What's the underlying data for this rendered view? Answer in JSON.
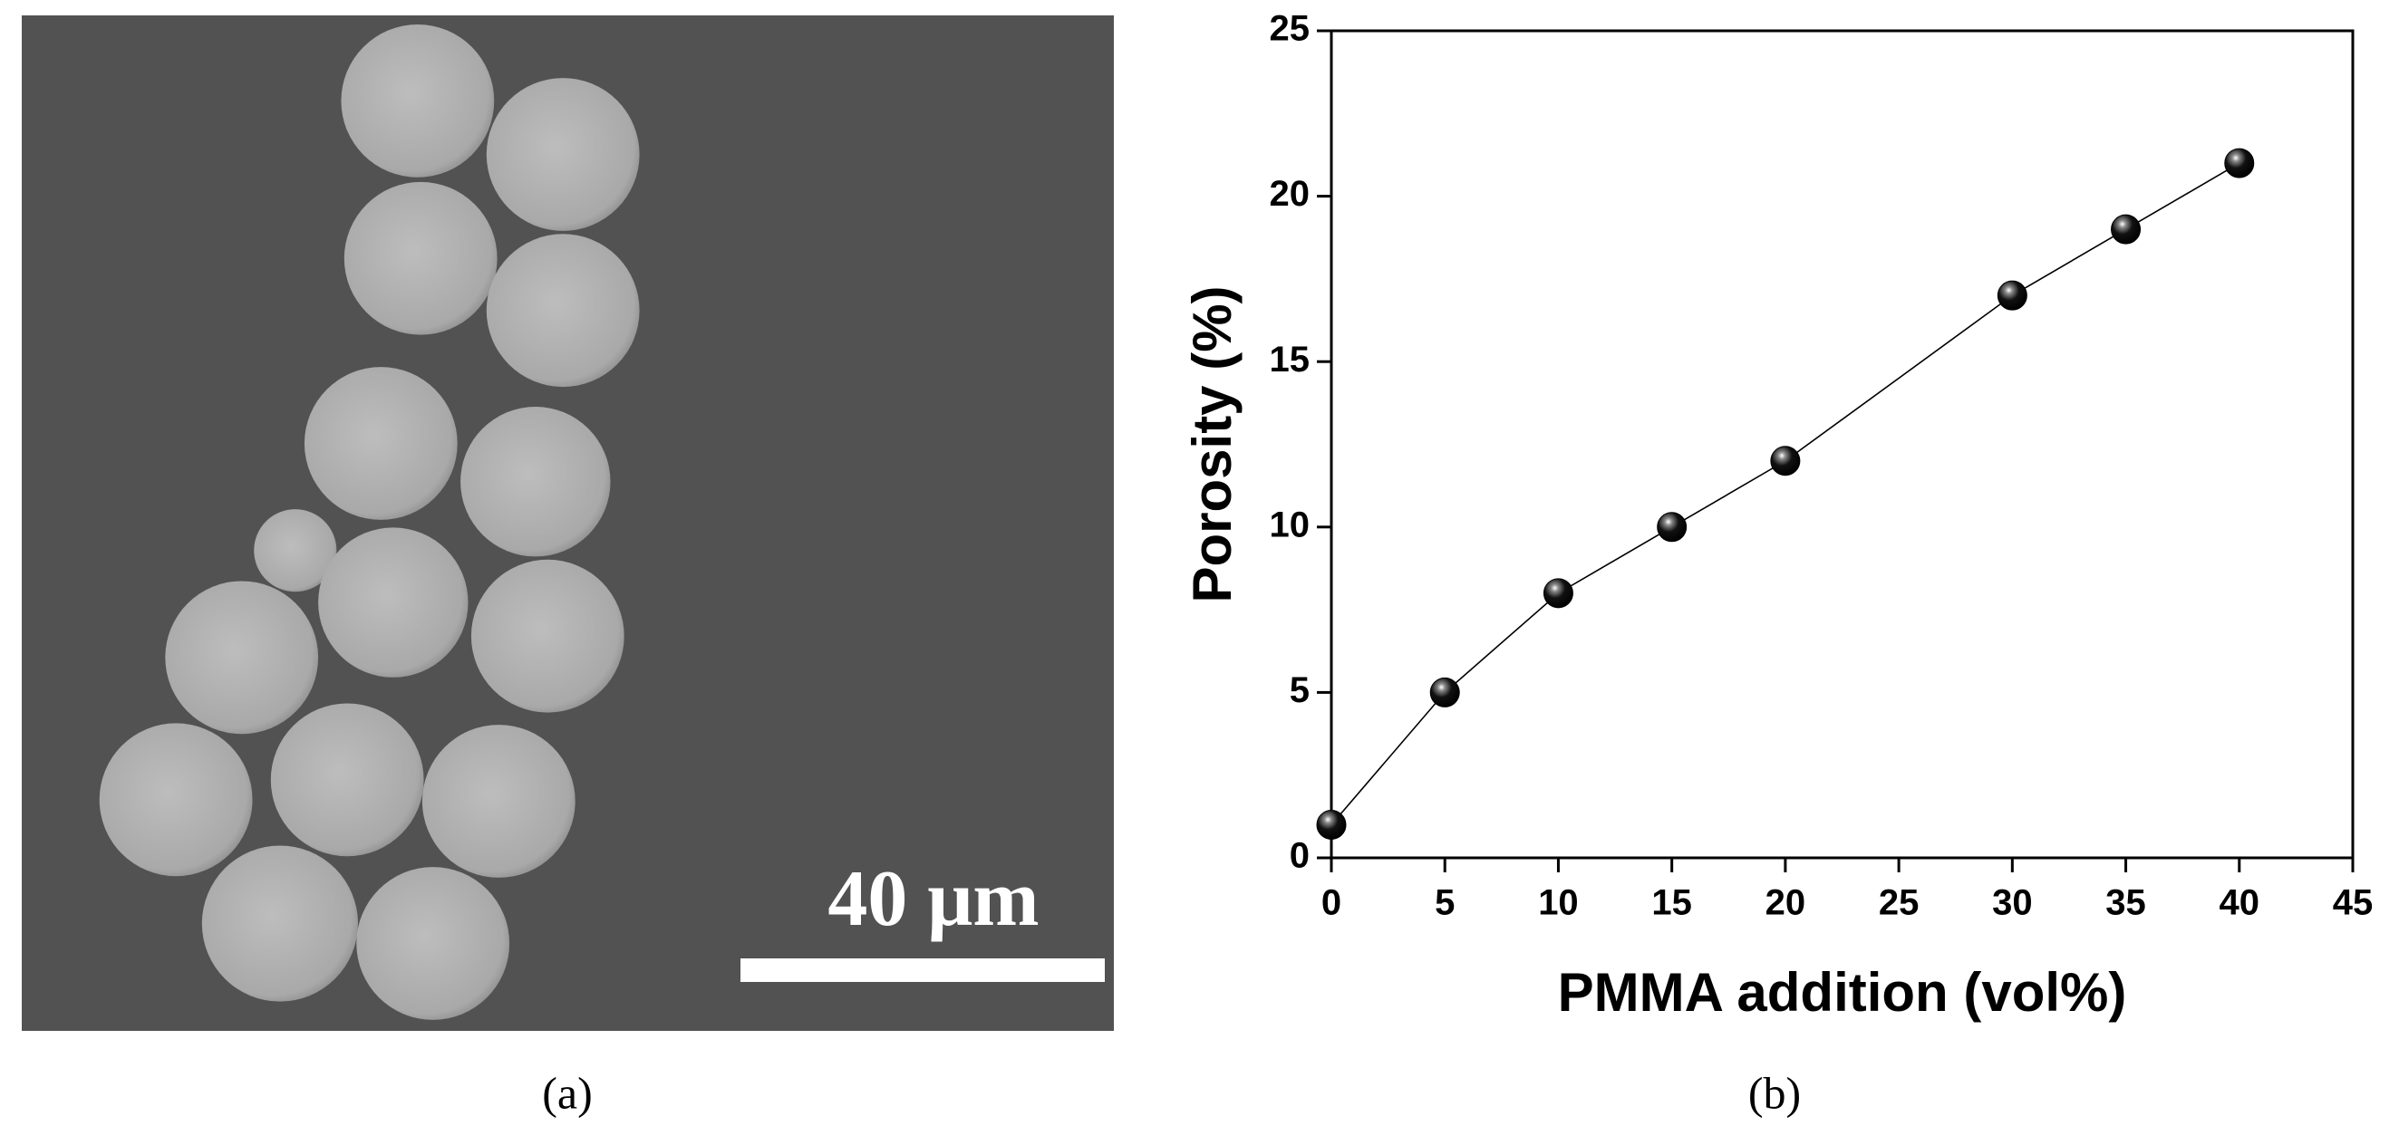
{
  "image": {
    "scale_bar_label": "40 μm",
    "caption": "(a)"
  },
  "chart_data": {
    "type": "line",
    "caption": "(b)",
    "x_label": "PMMA addition (vol%)",
    "y_label": "Porosity (%)",
    "x": [
      0,
      5,
      10,
      15,
      20,
      30,
      35,
      40
    ],
    "series": [
      {
        "name": "Porosity",
        "color": "#000000",
        "values": [
          1,
          5,
          8,
          10,
          12,
          17,
          19,
          21
        ]
      }
    ],
    "xlim": [
      0,
      45
    ],
    "ylim": [
      0,
      25
    ],
    "xticks": [
      0,
      5,
      10,
      15,
      20,
      25,
      30,
      35,
      40,
      45
    ],
    "yticks": [
      0,
      5,
      10,
      15,
      20,
      25
    ]
  }
}
